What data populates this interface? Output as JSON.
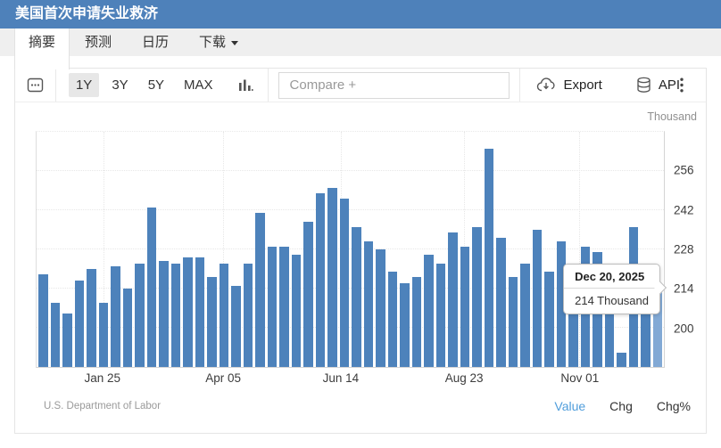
{
  "header": {
    "title": "美国首次申请失业救济"
  },
  "tabs": {
    "summary": "摘要",
    "forecast": "预测",
    "calendar": "日历",
    "download": "下载"
  },
  "toolbar": {
    "range_1y": "1Y",
    "range_3y": "3Y",
    "range_5y": "5Y",
    "range_max": "MAX",
    "active_range": "1Y",
    "compare_placeholder": "Compare +",
    "export_label": "Export",
    "api_label": "API"
  },
  "chart": {
    "unit_label": "Thousand",
    "tooltip": {
      "date": "Dec 20, 2025",
      "value": "214 Thousand"
    }
  },
  "footer": {
    "source": "U.S. Department of Labor",
    "value_label": "Value",
    "chg_label": "Chg",
    "chg_pct_label": "Chg%"
  },
  "colors": {
    "header_bg": "#4e81ba",
    "bar": "#4d82bb",
    "bar_highlight": "#82a9d5",
    "accent_blue": "#4f9ddb"
  },
  "chart_data": {
    "type": "bar",
    "title": "美国首次申请失业救济 (US Initial Jobless Claims)",
    "unit": "Thousand",
    "frequency": "weekly",
    "values": [
      219,
      209,
      205,
      217,
      221,
      209,
      222,
      214,
      223,
      243,
      224,
      223,
      225,
      225,
      218,
      223,
      215,
      223,
      241,
      229,
      229,
      226,
      238,
      248,
      250,
      246,
      236,
      231,
      228,
      220,
      216,
      218,
      226,
      223,
      234,
      229,
      236,
      264,
      232,
      218,
      223,
      235,
      220,
      231,
      219,
      229,
      227,
      218,
      191,
      236,
      223,
      214
    ],
    "highlight_index": 51,
    "ylim": [
      186,
      270
    ],
    "y_ticks": [
      200,
      214,
      228,
      242,
      256
    ],
    "y_axis_side": "right",
    "grid": true,
    "legend": false,
    "x_ticks": [
      {
        "label": "Jan 25",
        "pct": 10.6
      },
      {
        "label": "Apr 05",
        "pct": 29.8
      },
      {
        "label": "Jun 14",
        "pct": 48.5
      },
      {
        "label": "Aug 23",
        "pct": 68.1
      },
      {
        "label": "Nov 01",
        "pct": 86.5
      }
    ],
    "last_point": {
      "date": "Dec 20, 2025",
      "value": 214
    },
    "source": "U.S. Department of Labor"
  }
}
